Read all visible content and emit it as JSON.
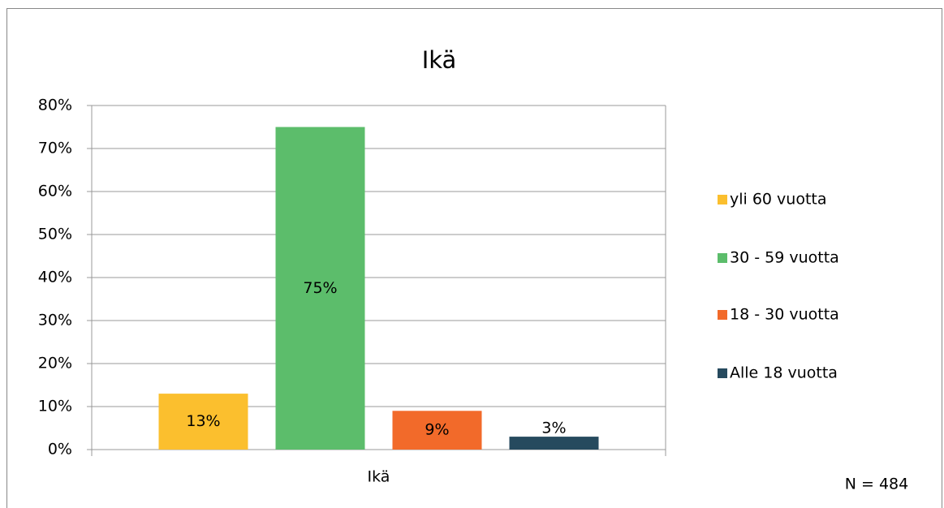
{
  "chart_data": {
    "type": "bar",
    "title": "Ikä",
    "categories": [
      "Ikä"
    ],
    "series": [
      {
        "name": "yli 60 vuotta",
        "color": "#fbbf2e",
        "values": [
          13
        ],
        "value_labels": [
          "13%"
        ]
      },
      {
        "name": "30 - 59 vuotta",
        "color": "#5cbd6b",
        "values": [
          75
        ],
        "value_labels": [
          "75%"
        ]
      },
      {
        "name": "18 - 30 vuotta",
        "color": "#f26a2a",
        "values": [
          9
        ],
        "value_labels": [
          "9%"
        ]
      },
      {
        "name": "Alle 18 vuotta",
        "color": "#264a5e",
        "values": [
          3
        ],
        "value_labels": [
          "3%"
        ]
      }
    ],
    "ylim": [
      0,
      80
    ],
    "yticks": [
      {
        "value": 0,
        "label": "0%"
      },
      {
        "value": 10,
        "label": "10%"
      },
      {
        "value": 20,
        "label": "20%"
      },
      {
        "value": 30,
        "label": "30%"
      },
      {
        "value": 40,
        "label": "40%"
      },
      {
        "value": 50,
        "label": "50%"
      },
      {
        "value": 60,
        "label": "60%"
      },
      {
        "value": 70,
        "label": "70%"
      },
      {
        "value": 80,
        "label": "80%"
      }
    ],
    "grid": true,
    "legend": "right",
    "annotation": "N = 484"
  }
}
